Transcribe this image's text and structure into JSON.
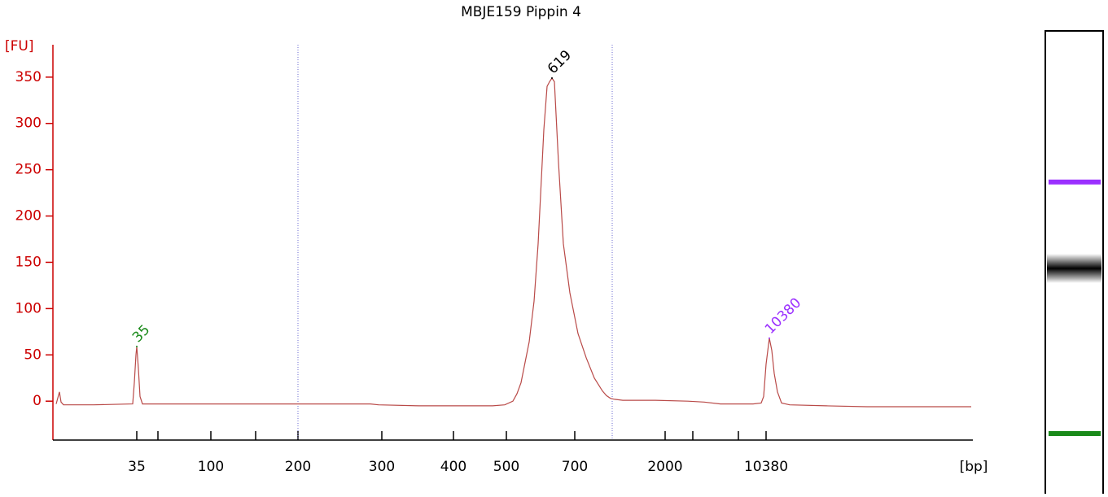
{
  "chart_data": {
    "type": "line",
    "title": "MBJE159 Pippin 4",
    "ylabel": "[FU]",
    "xlabel": "[bp]",
    "xlim": [
      0,
      113
    ],
    "ylim": [
      -42,
      385
    ],
    "yticks": [
      0,
      50,
      100,
      150,
      200,
      250,
      300,
      350
    ],
    "xticks": [
      {
        "value": 10.3,
        "label": "35"
      },
      {
        "value": 12.9,
        "label": null
      },
      {
        "value": 19.4,
        "label": "100"
      },
      {
        "value": 24.9,
        "label": null
      },
      {
        "value": 30.1,
        "label": "200"
      },
      {
        "value": 40.4,
        "label": "300"
      },
      {
        "value": 49.2,
        "label": "400"
      },
      {
        "value": 55.7,
        "label": "500"
      },
      {
        "value": 64.1,
        "label": "700"
      },
      {
        "value": 75.2,
        "label": "2000"
      },
      {
        "value": 78.6,
        "label": null
      },
      {
        "value": 84.2,
        "label": null
      },
      {
        "value": 87.6,
        "label": "10380"
      }
    ],
    "x": [
      0.4,
      0.8,
      1.0,
      1.3,
      5,
      9.8,
      10.0,
      10.2,
      10.3,
      10.5,
      10.7,
      11.0,
      25,
      30,
      35,
      39,
      40,
      45,
      50,
      54,
      55.5,
      56.5,
      57.0,
      57.5,
      58.5,
      59.1,
      59.6,
      60.0,
      60.3,
      60.7,
      61.0,
      61.3,
      61.6,
      62.1,
      62.7,
      63.5,
      64.5,
      65.5,
      66.5,
      67.5,
      68.0,
      68.5,
      69.0,
      70,
      74,
      78,
      80,
      82,
      86,
      87.0,
      87.3,
      87.6,
      88.0,
      88.3,
      88.6,
      89.0,
      89.5,
      90.5,
      95,
      100,
      105,
      112.8
    ],
    "values": [
      -3,
      10,
      -1,
      -4,
      -4,
      -3,
      20,
      50,
      59,
      35,
      5,
      -3,
      -3,
      -3,
      -3,
      -3,
      -4,
      -5,
      -5,
      -5,
      -4,
      0,
      8,
      20,
      64,
      108,
      170,
      240,
      293,
      340,
      345,
      349,
      345,
      258,
      170,
      117,
      73,
      47,
      25,
      11,
      6,
      3,
      2,
      1,
      1,
      0,
      -1,
      -3,
      -3,
      -2,
      5,
      40,
      68,
      55,
      30,
      10,
      -2,
      -4,
      -5,
      -6,
      -6,
      -6
    ],
    "color": "#b94a48",
    "peaks": [
      {
        "label": "35",
        "x": 10.3,
        "value": 59,
        "color": "#1a8a1a"
      },
      {
        "label": "619",
        "x": 61.3,
        "value": 349,
        "color": "#000000"
      },
      {
        "label": "10380",
        "x": 88.0,
        "value": 68,
        "color": "#9b30ff"
      }
    ],
    "region_bounds": [
      30.1,
      68.7
    ],
    "region_color": "#6a6ad0"
  }
}
